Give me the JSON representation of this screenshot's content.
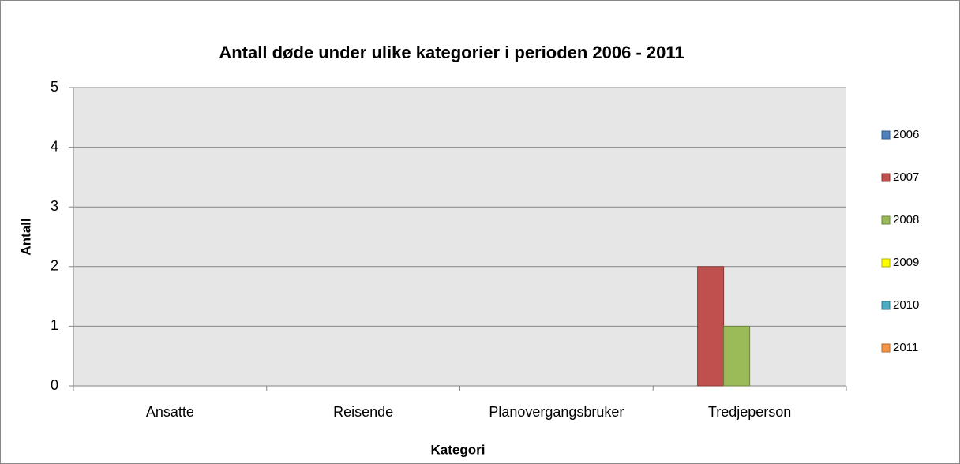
{
  "chart_data": {
    "type": "bar",
    "title": "Antall døde under ulike kategorier i perioden 2006 - 2011",
    "x_label": "Kategori",
    "y_label": "Antall",
    "categories": [
      "Ansatte",
      "Reisende",
      "Planovergangsbruker",
      "Tredjeperson"
    ],
    "series": [
      {
        "name": "2006",
        "color": "#4f81bd",
        "values": [
          0,
          0,
          0,
          0
        ]
      },
      {
        "name": "2007",
        "color": "#c0504d",
        "values": [
          0,
          0,
          0,
          2
        ]
      },
      {
        "name": "2008",
        "color": "#9bbb59",
        "values": [
          0,
          0,
          0,
          1
        ]
      },
      {
        "name": "2009",
        "color": "#ffff00",
        "values": [
          0,
          0,
          0,
          0
        ]
      },
      {
        "name": "2010",
        "color": "#4bacc6",
        "values": [
          0,
          0,
          0,
          0
        ]
      },
      {
        "name": "2011",
        "color": "#f79646",
        "values": [
          0,
          0,
          0,
          0
        ]
      }
    ],
    "ylim": [
      0,
      5
    ],
    "yticks": [
      0,
      1,
      2,
      3,
      4,
      5
    ],
    "grid": true,
    "legend": "right"
  }
}
